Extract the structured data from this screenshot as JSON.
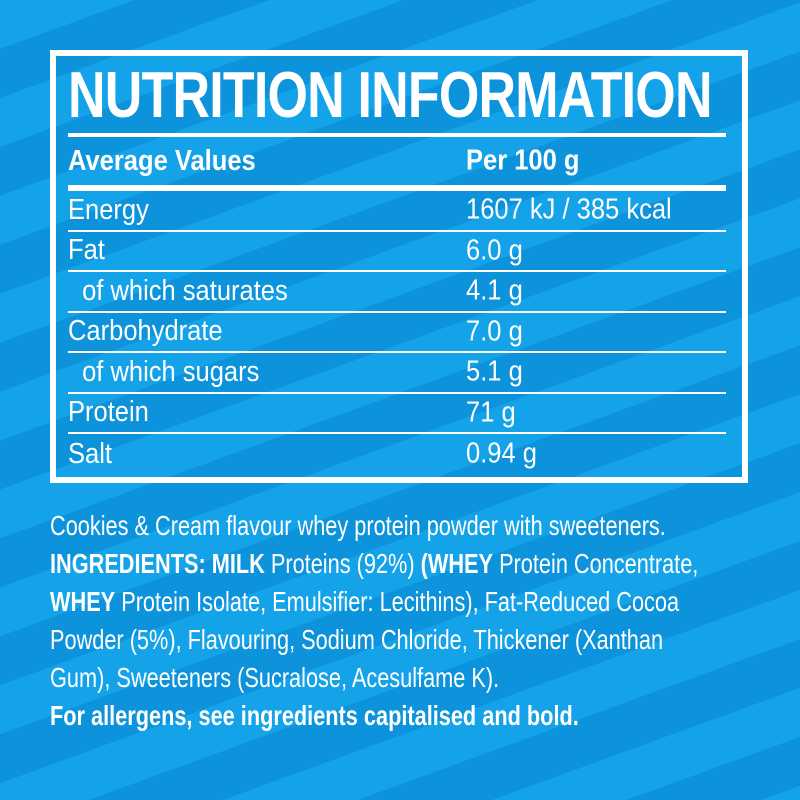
{
  "colors": {
    "stripe_light": "#14A2E9",
    "stripe_dark": "#0C93DB",
    "text": "#FFFFFF",
    "rule": "#FFFFFF"
  },
  "label": {
    "title": "NUTRITION INFORMATION",
    "header": {
      "col_label": "Average Values",
      "col_value": "Per 100 g"
    },
    "rows": [
      {
        "label": "Energy",
        "value": "1607 kJ / 385 kcal",
        "indent": false
      },
      {
        "label": "Fat",
        "value": "6.0 g",
        "indent": false
      },
      {
        "label": "of which saturates",
        "value": "4.1 g",
        "indent": true
      },
      {
        "label": "Carbohydrate",
        "value": "7.0 g",
        "indent": false
      },
      {
        "label": "of which sugars",
        "value": "5.1 g",
        "indent": true
      },
      {
        "label": "Protein",
        "value": "71 g",
        "indent": false
      },
      {
        "label": "Salt",
        "value": "0.94 g",
        "indent": false
      }
    ]
  },
  "description": {
    "lines": [
      [
        {
          "text": "Cookies & Cream flavour whey protein powder with sweeteners.",
          "bold": false
        }
      ],
      [
        {
          "text": "INGREDIENTS: MILK",
          "bold": true
        },
        {
          "text": " Proteins (92%) ",
          "bold": false
        },
        {
          "text": "(WHEY",
          "bold": true
        },
        {
          "text": " Protein Concentrate,",
          "bold": false
        }
      ],
      [
        {
          "text": "WHEY",
          "bold": true
        },
        {
          "text": " Protein Isolate, Emulsifier: Lecithins), Fat-Reduced Cocoa",
          "bold": false
        }
      ],
      [
        {
          "text": "Powder (5%), Flavouring, Sodium Chloride, Thickener (Xanthan",
          "bold": false
        }
      ],
      [
        {
          "text": "Gum), Sweeteners (Sucralose, Acesulfame K).",
          "bold": false
        }
      ],
      [
        {
          "text": "For allergens, see ingredients capitalised and bold.",
          "bold": true
        }
      ]
    ]
  }
}
